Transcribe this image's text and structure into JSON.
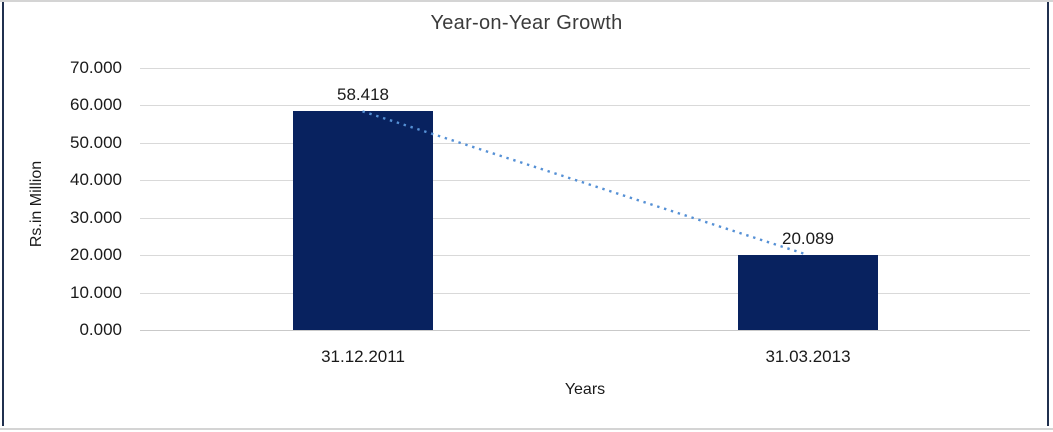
{
  "chart_data": {
    "type": "bar",
    "title": "Year-on-Year Growth",
    "xlabel": "Years",
    "ylabel": "Rs.in Million",
    "categories": [
      "31.12.2011",
      "31.03.2013"
    ],
    "values": [
      58.418,
      20.089
    ],
    "data_labels": [
      "58.418",
      "20.089"
    ],
    "ylim": [
      0,
      70
    ],
    "ytick_step": 10,
    "ytick_labels": [
      "0.000",
      "10.000",
      "20.000",
      "30.000",
      "40.000",
      "50.000",
      "60.000",
      "70.000"
    ],
    "grid": true,
    "legend": "none",
    "bar_color": "#08225f",
    "gridline_color": "#d9d9d9",
    "trendline": {
      "style": "dotted",
      "color": "#5590d5",
      "from_value": 58.418,
      "to_value": 20.089
    }
  }
}
